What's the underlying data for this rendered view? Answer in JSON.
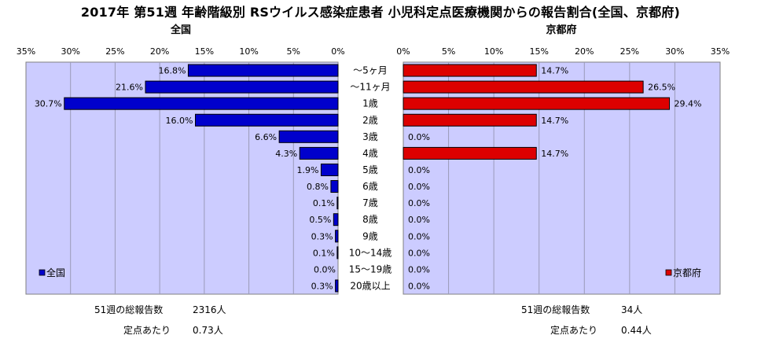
{
  "title": "2017年 第51週 年齢階級別 RSウイルス感染症患者 小児科定点医療機関からの報告割合(全国、京都府)",
  "age_groups": [
    "～5ヶ月",
    "～11ヶ月",
    "1歳",
    "2歳",
    "3歳",
    "4歳",
    "5歳",
    "6歳",
    "7歳",
    "8歳",
    "9歳",
    "10～14歳",
    "15～19歳",
    "20歳以上"
  ],
  "colors": {
    "national_bar": "#0000cc",
    "kyoto_bar": "#dd0000",
    "plot_bg": "#ccccff"
  },
  "chart_data": [
    {
      "type": "bar",
      "orientation": "horizontal",
      "direction": "right-to-left",
      "title": "全国",
      "categories": [
        "～5ヶ月",
        "～11ヶ月",
        "1歳",
        "2歳",
        "3歳",
        "4歳",
        "5歳",
        "6歳",
        "7歳",
        "8歳",
        "9歳",
        "10～14歳",
        "15～19歳",
        "20歳以上"
      ],
      "series": [
        {
          "name": "全国",
          "values": [
            16.8,
            21.6,
            30.7,
            16.0,
            6.6,
            4.3,
            1.9,
            0.8,
            0.1,
            0.5,
            0.3,
            0.1,
            0.0,
            0.3
          ]
        }
      ],
      "data_labels": [
        "16.8%",
        "21.6%",
        "30.7%",
        "16.0%",
        "6.6%",
        "4.3%",
        "1.9%",
        "0.8%",
        "0.1%",
        "0.5%",
        "0.3%",
        "0.1%",
        "0.0%",
        "0.3%"
      ],
      "xticks": [
        "35%",
        "30%",
        "25%",
        "20%",
        "15%",
        "10%",
        "5%",
        "0%"
      ],
      "xlim": [
        0,
        35
      ],
      "grid": true,
      "legend": "bottom-left"
    },
    {
      "type": "bar",
      "orientation": "horizontal",
      "direction": "left-to-right",
      "title": "京都府",
      "categories": [
        "～5ヶ月",
        "～11ヶ月",
        "1歳",
        "2歳",
        "3歳",
        "4歳",
        "5歳",
        "6歳",
        "7歳",
        "8歳",
        "9歳",
        "10～14歳",
        "15～19歳",
        "20歳以上"
      ],
      "series": [
        {
          "name": "京都府",
          "values": [
            14.7,
            26.5,
            29.4,
            14.7,
            0.0,
            14.7,
            0.0,
            0.0,
            0.0,
            0.0,
            0.0,
            0.0,
            0.0,
            0.0
          ]
        }
      ],
      "data_labels": [
        "14.7%",
        "26.5%",
        "29.4%",
        "14.7%",
        "0.0%",
        "14.7%",
        "0.0%",
        "0.0%",
        "0.0%",
        "0.0%",
        "0.0%",
        "0.0%",
        "0.0%",
        "0.0%"
      ],
      "xticks": [
        "0%",
        "5%",
        "10%",
        "15%",
        "20%",
        "25%",
        "30%",
        "35%"
      ],
      "xlim": [
        0,
        35
      ],
      "grid": true,
      "legend": "bottom-right"
    }
  ],
  "summary": {
    "national": {
      "reports_label": "51週の総報告数",
      "reports_value": "2316人",
      "per_site_label": "定点あたり",
      "per_site_value": "0.73人"
    },
    "kyoto": {
      "reports_label": "51週の総報告数",
      "reports_value": "34人",
      "per_site_label": "定点あたり",
      "per_site_value": "0.44人"
    }
  }
}
